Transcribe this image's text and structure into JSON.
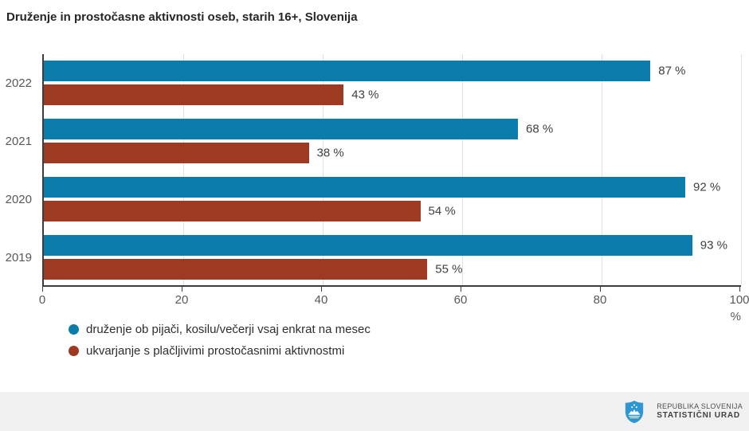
{
  "title": "Druženje in prostočasne aktivnosti oseb, starih 16+, Slovenija",
  "chart_data": {
    "type": "bar",
    "orientation": "horizontal",
    "title": "Druženje in prostočasne aktivnosti oseb, starih 16+, Slovenija",
    "categories": [
      "2022",
      "2021",
      "2020",
      "2019"
    ],
    "series": [
      {
        "name": "druženje ob pijači, kosilu/večerji vsaj enkrat na mesec",
        "color": "#0b7dad",
        "values": [
          87,
          68,
          92,
          93
        ]
      },
      {
        "name": "ukvarjanje s plačljivimi prostočasnimi aktivnostmi",
        "color": "#9e3a22",
        "values": [
          43,
          38,
          54,
          55
        ]
      }
    ],
    "value_suffix": " %",
    "xlabel": "%",
    "xlim": [
      0,
      100
    ],
    "xticks": [
      0,
      20,
      40,
      60,
      80,
      100
    ],
    "grid": true,
    "legend_position": "bottom-left"
  },
  "footer": {
    "org_line1": "REPUBLIKA SLOVENIJA",
    "org_line2": "STATISTIČNI URAD",
    "logo_icon": "slovenia-coat-of-arms-icon",
    "background": "#f0f0f0"
  },
  "colors": {
    "axis": "#3c3c3c",
    "gridline": "#e0e0e0",
    "title_text": "#262626",
    "axis_text": "#58585a",
    "value_text": "#404040",
    "logo_blue": "#2e96d5"
  }
}
